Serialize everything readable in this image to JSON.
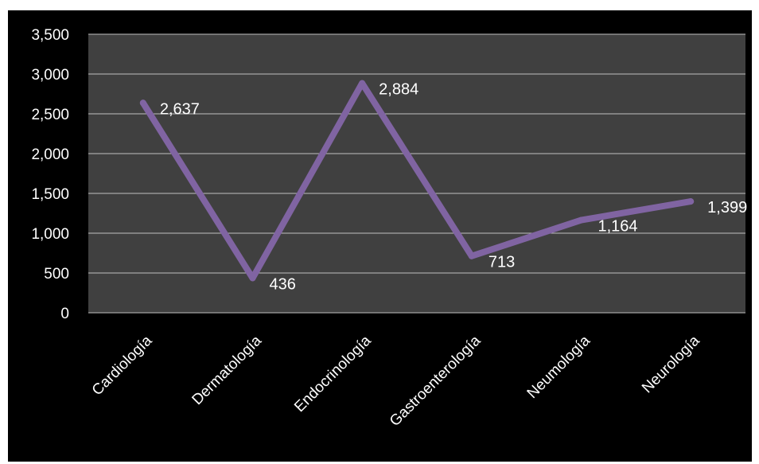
{
  "chart_data": {
    "type": "line",
    "categories": [
      "Cardiología",
      "Dermatología",
      "Endocrinología",
      "Gastroenterología",
      "Neumología",
      "Neurología"
    ],
    "series": [
      {
        "values": [
          2637,
          436,
          2884,
          713,
          1164,
          1399
        ],
        "color": "#8064A2"
      }
    ],
    "data_labels": [
      "2,637",
      "436",
      "2,884",
      "713",
      "1,164",
      "1,399"
    ],
    "y_ticks": [
      "0",
      "500",
      "1,000",
      "1,500",
      "2,000",
      "2,500",
      "3,000",
      "3,500"
    ],
    "ylim": [
      0,
      3500
    ],
    "grid": true,
    "legend": "none",
    "colors": {
      "background": "#000000",
      "plot_area": "#404040",
      "gridline": "#bfbfbf",
      "text": "#ffffff"
    }
  }
}
